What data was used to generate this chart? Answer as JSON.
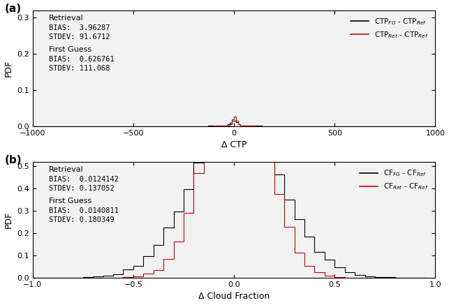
{
  "panel_a": {
    "label": "(a)",
    "retrieval_bias": 3.96287,
    "retrieval_stdev": 91.6712,
    "fg_bias": 0.626761,
    "fg_stdev": 111.068,
    "xlim": [
      -1000,
      1000
    ],
    "ylim": [
      0,
      0.32
    ],
    "xlabel": "Δ CTP",
    "ylabel": "PDF",
    "yticks": [
      0.0,
      0.1,
      0.2,
      0.3
    ],
    "xticks": [
      -1000,
      -500,
      0,
      500,
      1000
    ],
    "legend_black": "CTP$_{FG}$ - CTP$_{Ref}$",
    "legend_red": "CTP$_{Ret}$ - CTP$_{Ref}$",
    "text_retrieval": "Retrieval",
    "text_fg": "First Guess",
    "n_bins": 200
  },
  "panel_b": {
    "label": "(b)",
    "retrieval_bias": 0.0124142,
    "retrieval_stdev": 0.137052,
    "fg_bias": 0.0140811,
    "fg_stdev": 0.180349,
    "xlim": [
      -1.0,
      1.0
    ],
    "ylim": [
      0,
      0.52
    ],
    "xlabel": "Δ Cloud Fraction",
    "ylabel": "PDF",
    "yticks": [
      0.0,
      0.1,
      0.2,
      0.3,
      0.4,
      0.5
    ],
    "xticks": [
      -1.0,
      -0.5,
      0.0,
      0.5,
      1.0
    ],
    "legend_black": "CF$_{FG}$ - CF$_{Ref}$",
    "legend_red": "CF$_{Ret}$ - CF$_{Ref}$",
    "text_retrieval": "Retrieval",
    "text_fg": "First Guess",
    "n_bins": 40
  },
  "black_color": "#000000",
  "red_color": "#cc0000",
  "bg_color": "#f2f2f2",
  "seed": 42,
  "n_samples": 200000
}
